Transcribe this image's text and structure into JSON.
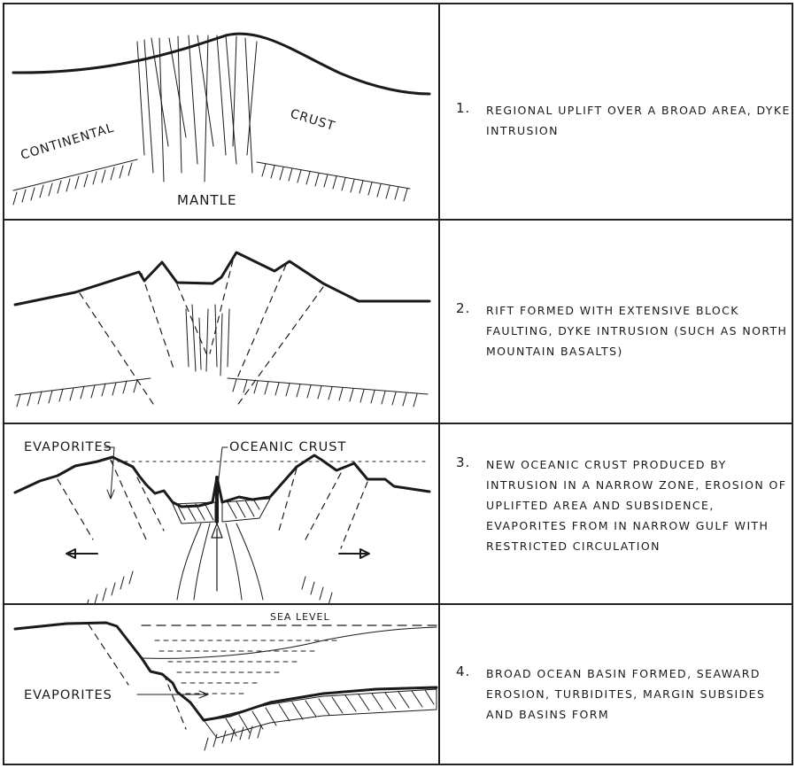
{
  "panels": [
    {
      "number": "1.",
      "caption": "Regional uplift over a broad area, dyke intrusion",
      "labels": {
        "continental": "CONTINENTAL",
        "crust": "CRUST",
        "mantle": "MANTLE"
      }
    },
    {
      "number": "2.",
      "caption": "Rift formed with extensive block faulting, dyke intrusion (such as North Mountain basalts)"
    },
    {
      "number": "3.",
      "caption": "New oceanic crust produced by intrusion in a narrow zone, erosion of uplifted area and subsidence, evaporites from in narrow gulf with restricted circulation",
      "labels": {
        "evaporites": "EVAPORITES",
        "oceanic_crust": "OCEANIC CRUST"
      }
    },
    {
      "number": "4.",
      "caption": "Broad ocean basin formed, seaward erosion, turbidites, margin subsides and basins form",
      "labels": {
        "sea_level": "SEA LEVEL",
        "evaporites": "EVAPORITES"
      }
    }
  ]
}
